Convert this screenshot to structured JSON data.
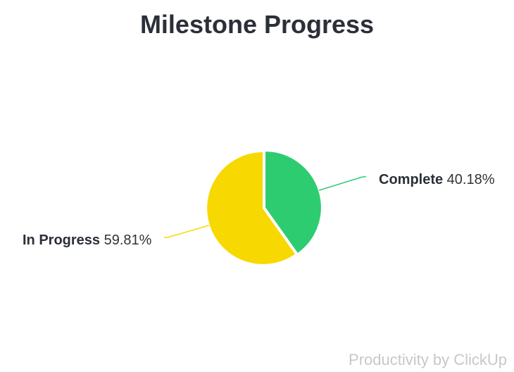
{
  "chart_data": {
    "type": "pie",
    "title": "Milestone Progress",
    "slices": [
      {
        "label": "Complete",
        "value": 40.18,
        "value_text": "40.18%",
        "color": "#2ecc71"
      },
      {
        "label": "In Progress",
        "value": 59.81,
        "value_text": "59.81%",
        "color": "#f7d800"
      }
    ],
    "start_angle_deg": 0,
    "direction": "clockwise"
  },
  "footer": {
    "credit": "Productivity by ClickUp"
  }
}
